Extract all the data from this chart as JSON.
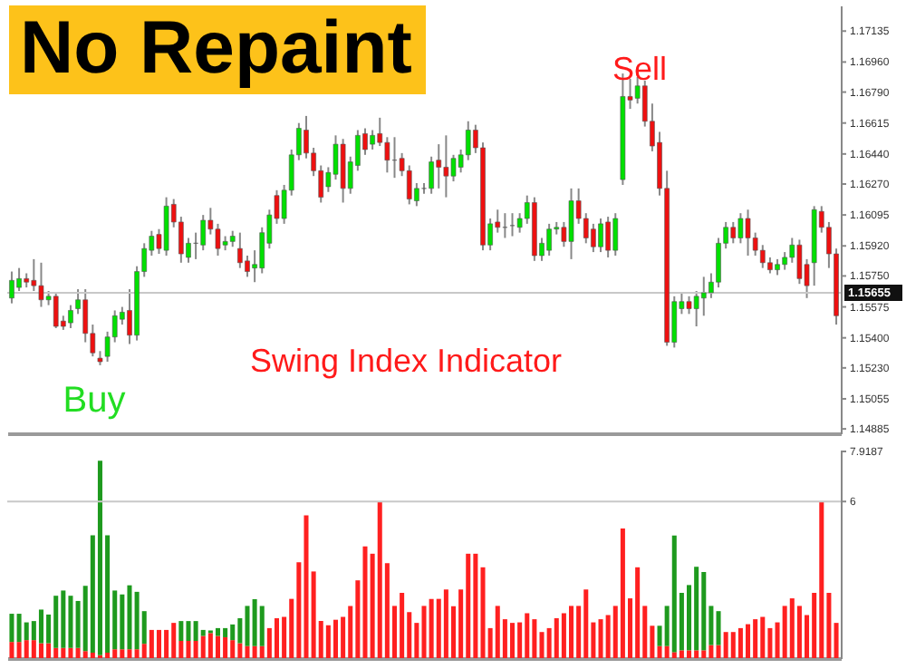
{
  "chart_data": [
    {
      "type": "candlestick",
      "title": "No Repaint",
      "annotations": [
        "Sell",
        "Buy",
        "Swing Index Indicator"
      ],
      "categories": [
        null,
        null,
        null,
        null,
        null,
        null,
        null,
        null,
        null,
        null,
        null,
        null,
        null,
        null,
        null,
        null,
        null,
        null,
        null,
        null,
        null,
        null,
        null,
        null,
        null,
        null,
        null,
        null,
        null,
        null,
        null,
        null,
        null,
        null,
        null,
        null,
        null,
        null,
        null,
        null,
        null,
        null,
        null,
        null,
        null,
        null,
        null,
        null,
        null,
        null,
        null,
        null,
        null,
        null,
        null,
        null,
        null,
        null,
        null,
        null,
        null,
        null,
        null,
        null,
        null,
        null,
        null,
        null,
        null,
        null,
        null,
        null,
        null,
        null,
        null,
        null,
        null,
        null,
        null,
        null,
        null,
        null,
        null,
        null,
        null,
        null,
        null,
        null,
        null,
        null,
        null,
        null,
        null,
        null,
        null,
        null,
        null,
        null,
        null,
        null,
        null,
        null,
        null,
        null,
        null,
        null,
        null,
        null,
        null,
        null,
        null,
        null,
        null
      ],
      "ohlc": [
        [
          1.15625,
          1.15775,
          1.15595,
          1.15725
        ],
        [
          1.15685,
          1.15795,
          1.15665,
          1.15735
        ],
        [
          1.15735,
          1.15765,
          1.15685,
          1.15715
        ],
        [
          1.15725,
          1.15845,
          1.15665,
          1.15695
        ],
        [
          1.15695,
          1.15825,
          1.15575,
          1.15615
        ],
        [
          1.15615,
          1.15665,
          1.15585,
          1.15635
        ],
        [
          1.15635,
          1.15655,
          1.15455,
          1.15465
        ],
        [
          1.15495,
          1.15525,
          1.15445,
          1.15465
        ],
        [
          1.15485,
          1.15585,
          1.15455,
          1.15555
        ],
        [
          1.15565,
          1.15675,
          1.15535,
          1.15615
        ],
        [
          1.15615,
          1.15675,
          1.15375,
          1.15425
        ],
        [
          1.15425,
          1.15475,
          1.15295,
          1.15315
        ],
        [
          1.15285,
          1.15325,
          1.15245,
          1.15265
        ],
        [
          1.15295,
          1.15435,
          1.15265,
          1.15405
        ],
        [
          1.15405,
          1.15555,
          1.15375,
          1.15525
        ],
        [
          1.15505,
          1.15575,
          1.15475,
          1.15545
        ],
        [
          1.15555,
          1.15675,
          1.15365,
          1.15415
        ],
        [
          1.15415,
          1.15805,
          1.15385,
          1.15775
        ],
        [
          1.15775,
          1.15935,
          1.15745,
          1.15905
        ],
        [
          1.15895,
          1.16005,
          1.15865,
          1.15975
        ],
        [
          1.15985,
          1.16015,
          1.15875,
          1.15905
        ],
        [
          1.15895,
          1.16195,
          1.15865,
          1.16145
        ],
        [
          1.16155,
          1.16185,
          1.16025,
          1.16055
        ],
        [
          1.16055,
          1.16085,
          1.15825,
          1.15875
        ],
        [
          1.15855,
          1.15965,
          1.15825,
          1.15935
        ],
        [
          1.15935,
          1.15995,
          1.15845,
          1.15935
        ],
        [
          1.15925,
          1.16095,
          1.15895,
          1.16065
        ],
        [
          1.16065,
          1.16135,
          1.15985,
          1.16015
        ],
        [
          1.16015,
          1.16045,
          1.15865,
          1.15905
        ],
        [
          1.15925,
          1.15975,
          1.15895,
          1.15945
        ],
        [
          1.15945,
          1.16005,
          1.15915,
          1.15975
        ],
        [
          1.15905,
          1.15995,
          1.15795,
          1.15825
        ],
        [
          1.15835,
          1.15865,
          1.15745,
          1.15775
        ],
        [
          1.15795,
          1.15895,
          1.15715,
          1.15815
        ],
        [
          1.15795,
          1.16025,
          1.15765,
          1.15995
        ],
        [
          1.15935,
          1.16125,
          1.15905,
          1.16095
        ],
        [
          1.16205,
          1.16235,
          1.16045,
          1.16075
        ],
        [
          1.16075,
          1.16265,
          1.16045,
          1.16235
        ],
        [
          1.16235,
          1.16465,
          1.16205,
          1.16435
        ],
        [
          1.16435,
          1.16615,
          1.16405,
          1.16585
        ],
        [
          1.16575,
          1.16655,
          1.16415,
          1.16445
        ],
        [
          1.16445,
          1.16475,
          1.16315,
          1.16345
        ],
        [
          1.16345,
          1.16375,
          1.16165,
          1.16195
        ],
        [
          1.16255,
          1.16365,
          1.16225,
          1.16335
        ],
        [
          1.16325,
          1.16545,
          1.16295,
          1.16495
        ],
        [
          1.16495,
          1.16525,
          1.16165,
          1.16245
        ],
        [
          1.16245,
          1.16425,
          1.16215,
          1.16395
        ],
        [
          1.16375,
          1.16575,
          1.16345,
          1.16545
        ],
        [
          1.16555,
          1.16585,
          1.16435,
          1.16465
        ],
        [
          1.16495,
          1.16575,
          1.16465,
          1.16545
        ],
        [
          1.16555,
          1.16645,
          1.16485,
          1.16505
        ],
        [
          1.16505,
          1.16535,
          1.16335,
          1.16405
        ],
        [
          1.16405,
          1.16535,
          1.16305,
          1.16405
        ],
        [
          1.16415,
          1.16445,
          1.16315,
          1.16345
        ],
        [
          1.16345,
          1.16375,
          1.16155,
          1.16185
        ],
        [
          1.16175,
          1.16275,
          1.16145,
          1.16245
        ],
        [
          1.16245,
          1.16275,
          1.16215,
          1.16245
        ],
        [
          1.16245,
          1.16425,
          1.16215,
          1.16395
        ],
        [
          1.16405,
          1.16495,
          1.16245,
          1.16365
        ],
        [
          1.16365,
          1.16545,
          1.16195,
          1.16315
        ],
        [
          1.16315,
          1.16435,
          1.16285,
          1.16415
        ],
        [
          1.16365,
          1.16465,
          1.16335,
          1.16435
        ],
        [
          1.16435,
          1.16625,
          1.16405,
          1.16575
        ],
        [
          1.16575,
          1.16605,
          1.16445,
          1.16475
        ],
        [
          1.16475,
          1.16505,
          1.15895,
          1.15925
        ],
        [
          1.15925,
          1.16075,
          1.15895,
          1.16045
        ],
        [
          1.16055,
          1.16125,
          1.15995,
          1.16025
        ],
        [
          1.16025,
          1.16105,
          1.15965,
          1.16025
        ],
        [
          1.16035,
          1.16105,
          1.15975,
          1.16035
        ],
        [
          1.16025,
          1.16105,
          1.15995,
          1.16075
        ],
        [
          1.16075,
          1.16205,
          1.16045,
          1.16165
        ],
        [
          1.16165,
          1.16195,
          1.15835,
          1.15865
        ],
        [
          1.15865,
          1.15965,
          1.15835,
          1.15935
        ],
        [
          1.15895,
          1.16045,
          1.15865,
          1.16015
        ],
        [
          1.16015,
          1.16055,
          1.15985,
          1.16025
        ],
        [
          1.16025,
          1.16055,
          1.15915,
          1.15945
        ],
        [
          1.15945,
          1.16245,
          1.15845,
          1.16175
        ],
        [
          1.16175,
          1.16245,
          1.16045,
          1.16075
        ],
        [
          1.16075,
          1.16105,
          1.15935,
          1.15965
        ],
        [
          1.16015,
          1.16045,
          1.15885,
          1.15915
        ],
        [
          1.15915,
          1.16075,
          1.15885,
          1.16045
        ],
        [
          1.16055,
          1.16085,
          1.15855,
          1.15895
        ],
        [
          1.15895,
          1.16105,
          1.15865,
          1.16075
        ],
        [
          1.16295,
          1.16895,
          1.16265,
          1.16765
        ],
        [
          1.16765,
          1.16865,
          1.16695,
          1.16745
        ],
        [
          1.16755,
          1.16875,
          1.16725,
          1.16825
        ],
        [
          1.16825,
          1.16855,
          1.16595,
          1.16625
        ],
        [
          1.16625,
          1.16725,
          1.16455,
          1.16485
        ],
        [
          1.16505,
          1.16565,
          1.16205,
          1.16245
        ],
        [
          1.16245,
          1.16345,
          1.15355,
          1.15375
        ],
        [
          1.15375,
          1.15635,
          1.15345,
          1.15605
        ],
        [
          1.15565,
          1.15655,
          1.15535,
          1.15605
        ],
        [
          1.15605,
          1.15635,
          1.15535,
          1.15565
        ],
        [
          1.15565,
          1.15665,
          1.15465,
          1.15635
        ],
        [
          1.15625,
          1.15745,
          1.15525,
          1.15655
        ],
        [
          1.15655,
          1.15765,
          1.15625,
          1.15715
        ],
        [
          1.15715,
          1.15965,
          1.15685,
          1.15935
        ],
        [
          1.15935,
          1.16055,
          1.15905,
          1.16025
        ],
        [
          1.16025,
          1.16055,
          1.15935,
          1.15965
        ],
        [
          1.15965,
          1.16105,
          1.15935,
          1.16075
        ],
        [
          1.16075,
          1.16125,
          1.15865,
          1.15965
        ],
        [
          1.15965,
          1.15995,
          1.15865,
          1.15895
        ],
        [
          1.15895,
          1.15925,
          1.15795,
          1.15825
        ],
        [
          1.15825,
          1.15855,
          1.15765,
          1.15785
        ],
        [
          1.15785,
          1.15845,
          1.15755,
          1.15815
        ],
        [
          1.15815,
          1.15885,
          1.15785,
          1.15855
        ],
        [
          1.15855,
          1.15965,
          1.15825,
          1.15925
        ],
        [
          1.15925,
          1.15955,
          1.15705,
          1.15735
        ],
        [
          1.15815,
          1.15845,
          1.15625,
          1.15695
        ],
        [
          1.15825,
          1.16145,
          1.15695,
          1.16125
        ],
        [
          1.16115,
          1.16145,
          1.15995,
          1.16025
        ],
        [
          1.16025,
          1.16055,
          1.15795,
          1.15875
        ],
        [
          1.15875,
          1.15905,
          1.15475,
          1.15525
        ]
      ],
      "ylim": [
        1.1486,
        1.1728
      ],
      "yticks": [
        1.17135,
        {
          "value": 1.1696,
          "label": "1.16960"
        },
        {
          "value": 1.1679,
          "label": "1.16790"
        },
        1.16615,
        {
          "value": 1.1644,
          "label": "1.16440"
        },
        {
          "value": 1.1627,
          "label": "1.16270"
        },
        1.16095,
        {
          "value": 1.1592,
          "label": "1.15920"
        },
        {
          "value": 1.1575,
          "label": "1.15750"
        },
        1.15575,
        {
          "value": 1.154,
          "label": "1.15400"
        },
        {
          "value": 1.1523,
          "label": "1.15230"
        },
        1.15055,
        1.14885
      ],
      "ref_lines": [
        {
          "axis": "y",
          "value": 1.15655,
          "label": "1.15655"
        }
      ]
    },
    {
      "type": "bar",
      "stacked": true,
      "categories": [
        null,
        null,
        null,
        null,
        null,
        null,
        null,
        null,
        null,
        null,
        null,
        null,
        null,
        null,
        null,
        null,
        null,
        null,
        null,
        null,
        null,
        null,
        null,
        null,
        null,
        null,
        null,
        null,
        null,
        null,
        null,
        null,
        null,
        null,
        null,
        null,
        null,
        null,
        null,
        null,
        null,
        null,
        null,
        null,
        null,
        null,
        null,
        null,
        null,
        null,
        null,
        null,
        null,
        null,
        null,
        null,
        null,
        null,
        null,
        null,
        null,
        null,
        null,
        null,
        null,
        null,
        null,
        null,
        null,
        null,
        null,
        null,
        null,
        null,
        null,
        null,
        null,
        null,
        null,
        null,
        null,
        null,
        null,
        null,
        null,
        null,
        null,
        null,
        null,
        null,
        null,
        null,
        null,
        null,
        null,
        null,
        null,
        null,
        null,
        null,
        null,
        null,
        null,
        null,
        null,
        null,
        null,
        null,
        null,
        null,
        null,
        null,
        null
      ],
      "series": [
        {
          "color": "#ff2020",
          "values": [
            0.62,
            0.62,
            0.69,
            0.69,
            0.57,
            0.57,
            0.39,
            0.39,
            0.39,
            0.39,
            0.27,
            0.21,
            0.11,
            0.21,
            0.34,
            0.34,
            0.34,
            0.34,
            0.55,
            1.08,
            1.08,
            1.08,
            1.35,
            0.66,
            0.66,
            0.66,
            0.85,
            0.96,
            0.85,
            0.8,
            0.69,
            0.57,
            0.46,
            0.46,
            0.46,
            1.15,
            1.53,
            1.58,
            2.27,
            3.67,
            5.47,
            3.32,
            1.42,
            1.26,
            1.47,
            1.58,
            2.0,
            2.98,
            4.28,
            4.0,
            6.0,
            3.64,
            2.0,
            2.5,
            1.76,
            1.35,
            2.0,
            2.27,
            2.27,
            2.63,
            1.99,
            2.63,
            4.0,
            4.0,
            3.48,
            1.15,
            2.0,
            1.49,
            1.35,
            1.37,
            1.72,
            1.49,
            1.0,
            1.15,
            1.53,
            1.72,
            2.0,
            2.0,
            2.63,
            1.37,
            1.49,
            1.65,
            2.0,
            4.97,
            2.29,
            3.48,
            2.0,
            1.24,
            0.46,
            0.46,
            0.23,
            0.3,
            0.3,
            0.3,
            0.3,
            0.5,
            0.5,
            1.0,
            1.0,
            1.15,
            1.3,
            1.49,
            1.58,
            1.15,
            1.37,
            2.0,
            2.29,
            2.0,
            1.65,
            2.5,
            6.0,
            2.5,
            1.35
          ]
        },
        {
          "color": "#1e9a1e",
          "values": [
            1.08,
            1.08,
            0.68,
            0.73,
            1.29,
            1.1,
            2.0,
            2.2,
            2.0,
            1.8,
            2.5,
            4.5,
            7.45,
            4.5,
            2.25,
            2.1,
            2.45,
            2.2,
            1.25,
            null,
            null,
            null,
            null,
            0.76,
            0.76,
            0.76,
            0.23,
            0.1,
            0.3,
            0.35,
            0.6,
            0.96,
            1.54,
            1.8,
            1.54,
            null,
            null,
            null,
            null,
            null,
            null,
            null,
            null,
            null,
            null,
            null,
            null,
            null,
            null,
            null,
            null,
            null,
            null,
            null,
            null,
            null,
            null,
            null,
            null,
            null,
            null,
            null,
            null,
            null,
            null,
            null,
            null,
            null,
            null,
            null,
            null,
            null,
            null,
            null,
            null,
            null,
            null,
            null,
            null,
            null,
            null,
            null,
            null,
            null,
            null,
            null,
            null,
            null,
            0.78,
            1.54,
            4.47,
            2.2,
            2.5,
            3.2,
            3.0,
            1.5,
            1.3,
            null,
            null,
            null,
            null,
            null,
            null,
            null,
            null,
            null,
            null,
            null,
            null,
            null,
            null,
            null,
            null
          ]
        }
      ],
      "ylim": [
        0,
        7.9187
      ],
      "yticks": [
        7.9187,
        6
      ],
      "ref_lines": [
        {
          "axis": "y",
          "value": 6
        }
      ]
    }
  ]
}
